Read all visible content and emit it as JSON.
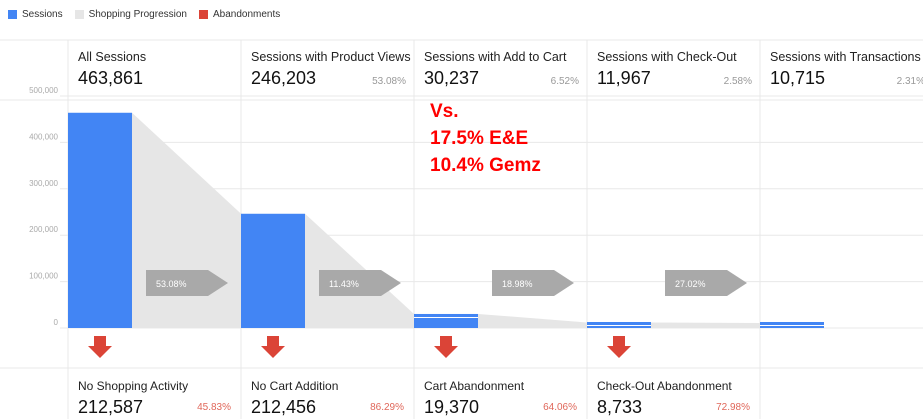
{
  "legend": [
    {
      "label": "Sessions",
      "color": "#4285f4"
    },
    {
      "label": "Shopping Progression",
      "color": "#e6e6e6"
    },
    {
      "label": "Abandonments",
      "color": "#db4437"
    }
  ],
  "annotation": {
    "line1": "Vs.",
    "line2": "17.5% E&E",
    "line3": "10.4% Gemz",
    "color": "#ff0000"
  },
  "chart_data": {
    "type": "bar",
    "categories": [
      "All Sessions",
      "Sessions with Product Views",
      "Sessions with Add to Cart",
      "Sessions with Check-Out",
      "Sessions with Transactions"
    ],
    "values": [
      463861,
      246203,
      30237,
      11967,
      10715
    ],
    "value_labels": [
      "463,861",
      "246,203",
      "30,237",
      "11,967",
      "10,715"
    ],
    "stage_percents": [
      "",
      "53.08%",
      "6.52%",
      "2.58%",
      "2.31%"
    ],
    "progression_percents": [
      "53.08%",
      "11.43%",
      "18.98%",
      "27.02%"
    ],
    "ylim": [
      0,
      500000
    ],
    "yticks": [
      0,
      100000,
      200000,
      300000,
      400000,
      500000
    ],
    "ytick_labels": [
      "0",
      "100,000",
      "200,000",
      "300,000",
      "400,000",
      "500,000"
    ],
    "abandonments": [
      {
        "label": "No Shopping Activity",
        "value": "212,587",
        "percent": "45.83%"
      },
      {
        "label": "No Cart Addition",
        "value": "212,456",
        "percent": "86.29%"
      },
      {
        "label": "Cart Abandonment",
        "value": "19,370",
        "percent": "64.06%"
      },
      {
        "label": "Check-Out Abandonment",
        "value": "8,733",
        "percent": "72.98%"
      }
    ],
    "colors": {
      "bar": "#4285f4",
      "progression": "#e6e6e6",
      "abandon": "#db4437",
      "arrow": "#a9a9a9",
      "grid": "#e8e8e8"
    }
  }
}
